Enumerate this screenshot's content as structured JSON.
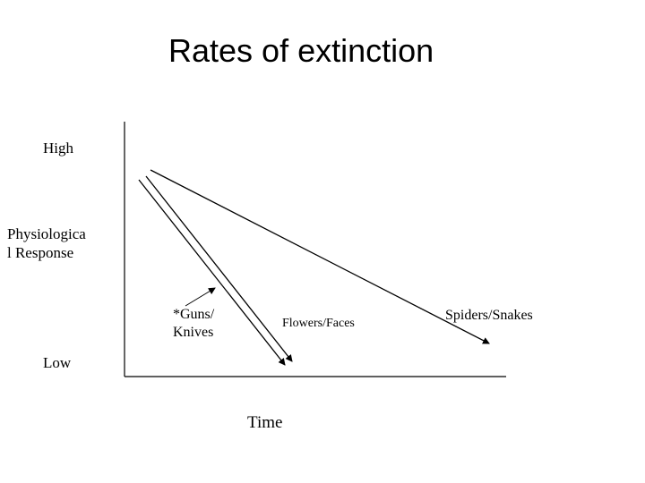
{
  "slide": {
    "title": "Rates of extinction"
  },
  "axes": {
    "y_high": "High",
    "y_label": "Physiologica\nl Response",
    "y_low": "Low",
    "x_label": "Time"
  },
  "lines": {
    "guns_knives": "*Guns/\nKnives",
    "flowers_faces": "Flowers/Faces",
    "spiders_snakes": "Spiders/Snakes"
  },
  "colors": {
    "ink": "#000000",
    "background": "#ffffff"
  }
}
